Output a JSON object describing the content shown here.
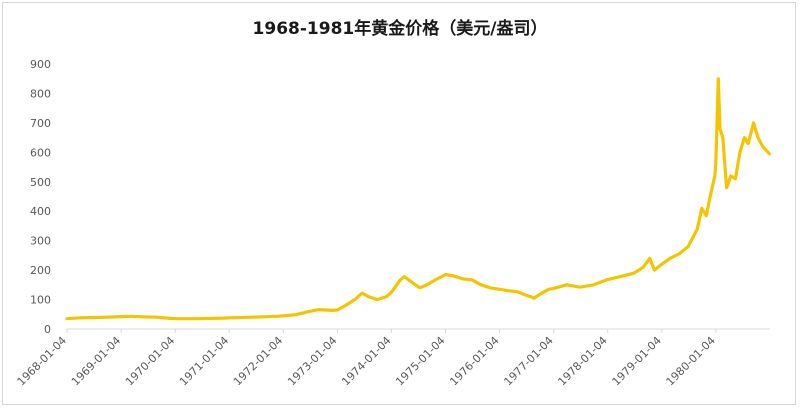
{
  "chart_data": {
    "type": "line",
    "title": "1968-1981年黄金价格（美元/盎司）",
    "xlabel": "",
    "ylabel": "",
    "x_ticks": [
      "1968-01-04",
      "1969-01-04",
      "1970-01-04",
      "1971-01-04",
      "1972-01-04",
      "1973-01-04",
      "1974-01-04",
      "1975-01-04",
      "1976-01-04",
      "1977-01-04",
      "1978-01-04",
      "1979-01-04",
      "1980-01-04"
    ],
    "y_ticks": [
      0,
      100,
      200,
      300,
      400,
      500,
      600,
      700,
      800,
      900
    ],
    "ylim": [
      0,
      900
    ],
    "xlim": [
      "1968-01-04",
      "1981-01-04"
    ],
    "grid": false,
    "legend": "none",
    "series": [
      {
        "color": "#f5c400",
        "points": [
          [
            "1968-01-04",
            35
          ],
          [
            "1968-04-01",
            38
          ],
          [
            "1968-07-01",
            39
          ],
          [
            "1968-10-01",
            40
          ],
          [
            "1969-01-04",
            42
          ],
          [
            "1969-03-15",
            43
          ],
          [
            "1969-06-01",
            41
          ],
          [
            "1969-09-01",
            40
          ],
          [
            "1969-12-01",
            36
          ],
          [
            "1970-01-04",
            35
          ],
          [
            "1970-06-01",
            35
          ],
          [
            "1970-12-01",
            37
          ],
          [
            "1971-01-04",
            38
          ],
          [
            "1971-06-01",
            40
          ],
          [
            "1971-12-01",
            43
          ],
          [
            "1972-01-04",
            45
          ],
          [
            "1972-04-01",
            49
          ],
          [
            "1972-07-01",
            60
          ],
          [
            "1972-09-01",
            66
          ],
          [
            "1972-12-01",
            63
          ],
          [
            "1973-01-04",
            65
          ],
          [
            "1973-03-01",
            80
          ],
          [
            "1973-05-01",
            100
          ],
          [
            "1973-06-20",
            122
          ],
          [
            "1973-08-01",
            110
          ],
          [
            "1973-10-01",
            100
          ],
          [
            "1973-12-01",
            110
          ],
          [
            "1974-01-04",
            125
          ],
          [
            "1974-03-01",
            165
          ],
          [
            "1974-04-01",
            178
          ],
          [
            "1974-06-01",
            155
          ],
          [
            "1974-07-15",
            140
          ],
          [
            "1974-09-01",
            150
          ],
          [
            "1974-11-01",
            168
          ],
          [
            "1975-01-04",
            185
          ],
          [
            "1975-03-01",
            180
          ],
          [
            "1975-05-01",
            170
          ],
          [
            "1975-07-01",
            167
          ],
          [
            "1975-09-01",
            150
          ],
          [
            "1975-11-01",
            140
          ],
          [
            "1976-01-04",
            135
          ],
          [
            "1976-03-01",
            130
          ],
          [
            "1976-05-01",
            127
          ],
          [
            "1976-07-01",
            115
          ],
          [
            "1976-08-25",
            105
          ],
          [
            "1976-10-01",
            118
          ],
          [
            "1976-12-01",
            135
          ],
          [
            "1977-01-04",
            138
          ],
          [
            "1977-04-01",
            150
          ],
          [
            "1977-07-01",
            142
          ],
          [
            "1977-10-01",
            150
          ],
          [
            "1978-01-04",
            168
          ],
          [
            "1978-04-01",
            178
          ],
          [
            "1978-07-01",
            190
          ],
          [
            "1978-09-01",
            210
          ],
          [
            "1978-10-15",
            240
          ],
          [
            "1978-11-15",
            200
          ],
          [
            "1979-01-04",
            220
          ],
          [
            "1979-03-01",
            240
          ],
          [
            "1979-05-01",
            255
          ],
          [
            "1979-07-01",
            280
          ],
          [
            "1979-09-01",
            340
          ],
          [
            "1979-10-01",
            410
          ],
          [
            "1979-11-01",
            385
          ],
          [
            "1979-12-01",
            460
          ],
          [
            "1979-12-28",
            520
          ],
          [
            "1980-01-04",
            560
          ],
          [
            "1980-01-21",
            850
          ],
          [
            "1980-02-01",
            680
          ],
          [
            "1980-02-20",
            650
          ],
          [
            "1980-03-17",
            480
          ],
          [
            "1980-04-15",
            520
          ],
          [
            "1980-05-15",
            510
          ],
          [
            "1980-06-15",
            600
          ],
          [
            "1980-07-15",
            650
          ],
          [
            "1980-08-10",
            630
          ],
          [
            "1980-09-15",
            700
          ],
          [
            "1980-10-15",
            650
          ],
          [
            "1980-11-15",
            620
          ],
          [
            "1980-12-31",
            595
          ]
        ]
      }
    ]
  }
}
